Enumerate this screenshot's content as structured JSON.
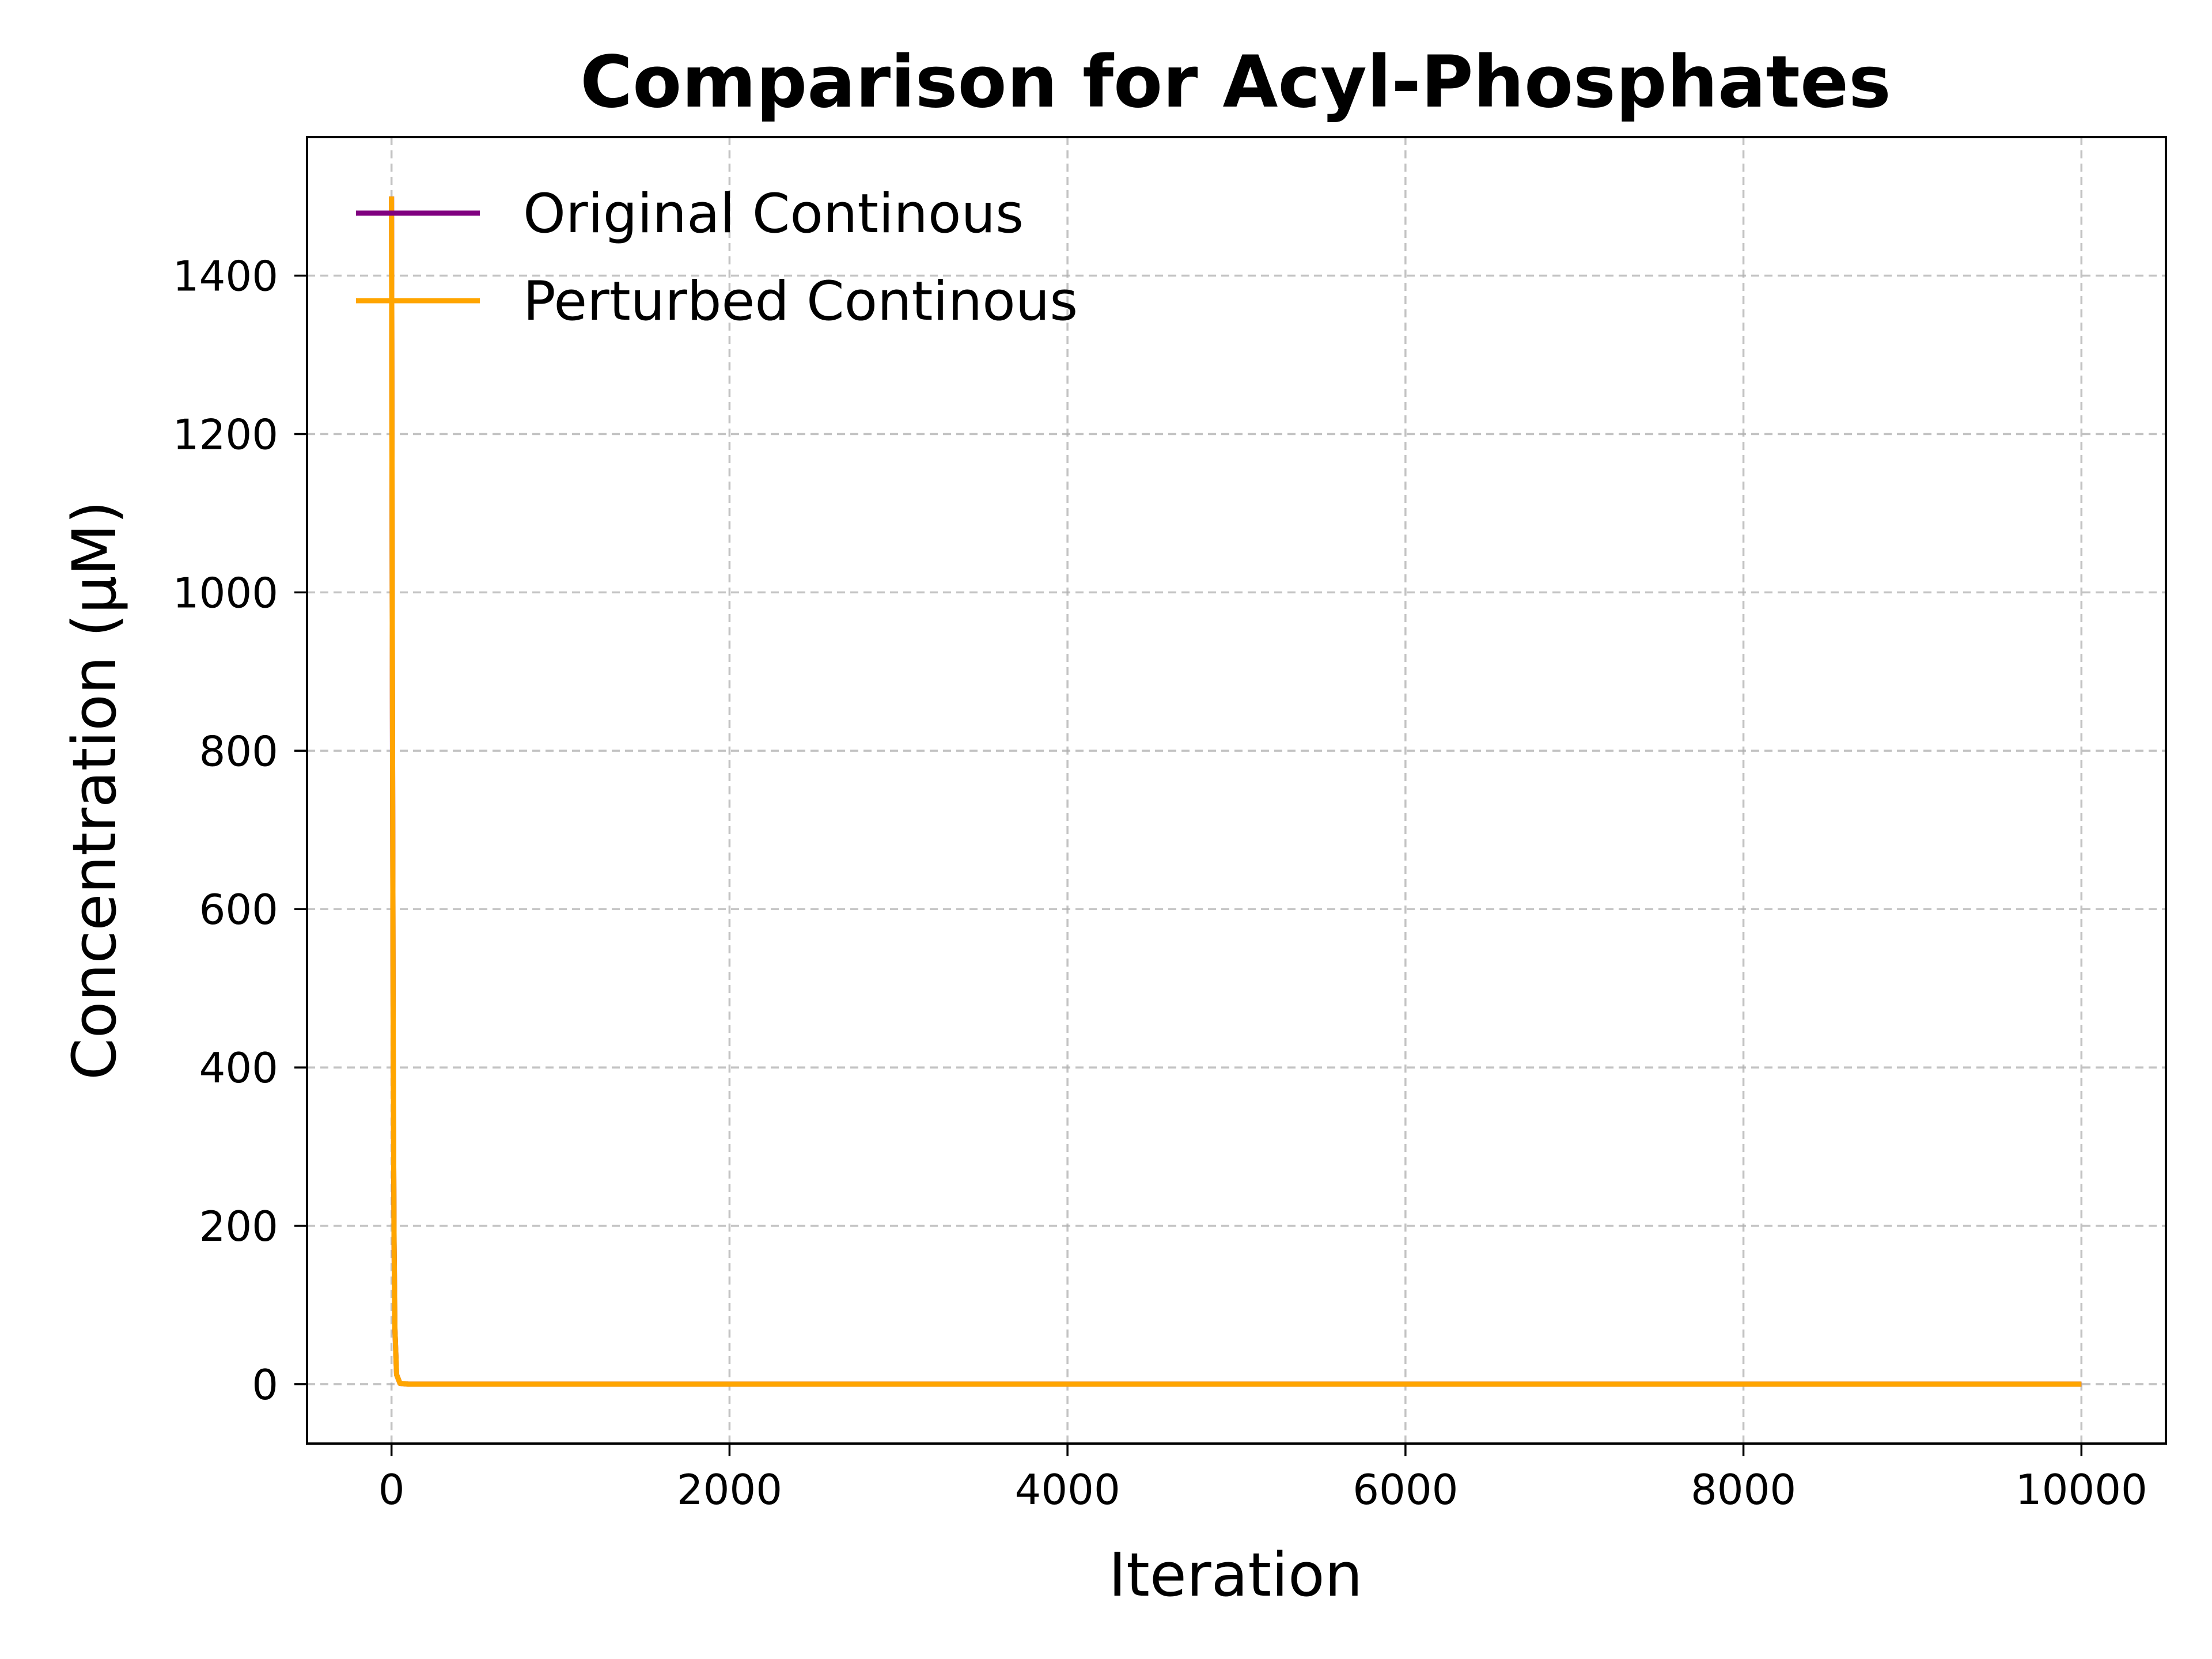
{
  "chart_data": {
    "type": "line",
    "title": "Comparison for Acyl-Phosphates",
    "xlabel": "Iteration",
    "ylabel": "Concentration (μM)",
    "xlim": [
      -500,
      10500
    ],
    "ylim": [
      -75,
      1575
    ],
    "xticks": [
      0,
      2000,
      4000,
      6000,
      8000,
      10000
    ],
    "yticks": [
      0,
      200,
      400,
      600,
      800,
      1000,
      1200,
      1400
    ],
    "grid": true,
    "legend_position": "top-left",
    "series": [
      {
        "name": "Original Continous",
        "color": "#800080",
        "x": [
          0,
          5,
          10,
          15,
          20,
          30,
          50,
          100,
          500,
          2000,
          4000,
          6000,
          8000,
          10000
        ],
        "y": [
          1500,
          900,
          420,
          180,
          70,
          12,
          1,
          0,
          0,
          0,
          0,
          0,
          0,
          0
        ]
      },
      {
        "name": "Perturbed Continous",
        "color": "#FFA500",
        "x": [
          0,
          5,
          10,
          15,
          20,
          30,
          50,
          100,
          500,
          2000,
          4000,
          6000,
          8000,
          10000
        ],
        "y": [
          1500,
          900,
          420,
          180,
          70,
          12,
          1,
          0,
          0,
          0,
          0,
          0,
          0,
          0
        ]
      }
    ]
  }
}
